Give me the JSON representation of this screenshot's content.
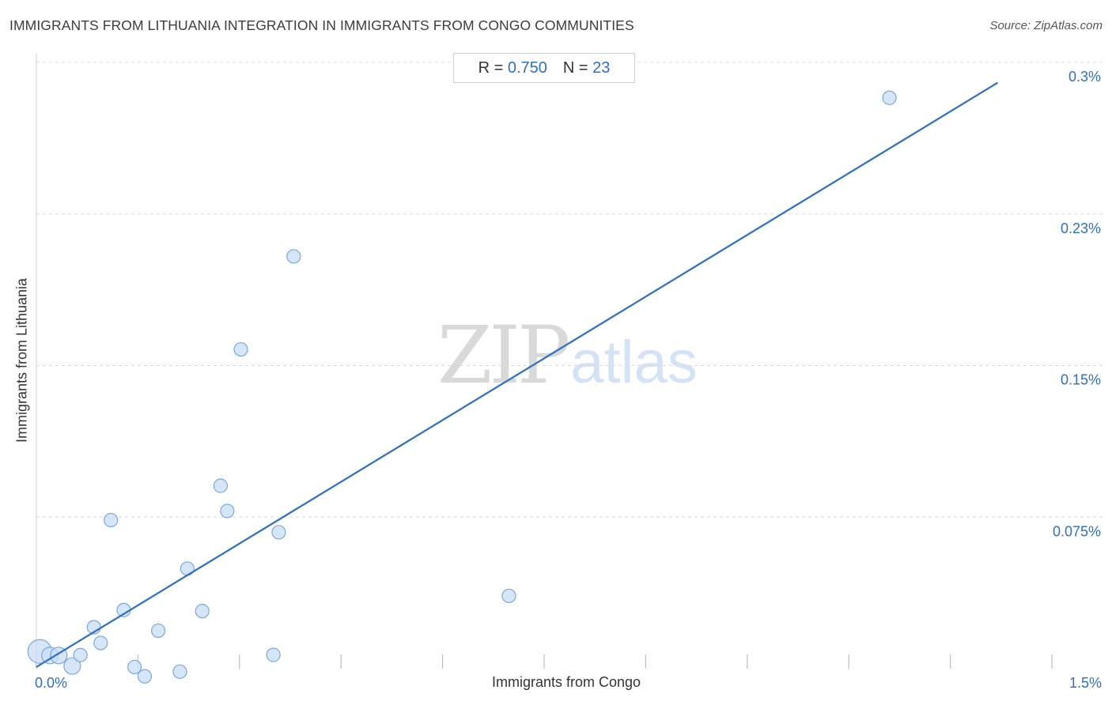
{
  "title": "IMMIGRANTS FROM LITHUANIA INTEGRATION IN IMMIGRANTS FROM CONGO COMMUNITIES",
  "source": "Source: ZipAtlas.com",
  "stats": {
    "r_label": "R = ",
    "r_value": "0.750",
    "n_label": "N = ",
    "n_value": "23"
  },
  "watermark": {
    "zip": "ZIP",
    "atlas": "atlas"
  },
  "colors": {
    "point_fill": "#c9ddf4",
    "point_stroke": "#7aa8de",
    "trend_line": "#2f6fc6",
    "tick_label": "#2f6fc6",
    "grid": "#dcdcdc"
  },
  "chart_data": {
    "type": "scatter",
    "title": "IMMIGRANTS FROM LITHUANIA INTEGRATION IN IMMIGRANTS FROM CONGO COMMUNITIES",
    "xlabel": "Immigrants from Congo",
    "ylabel": "Immigrants from Lithuania",
    "xlim": [
      0,
      1.5
    ],
    "ylim": [
      0,
      0.3
    ],
    "x_unit": "%",
    "y_unit": "%",
    "x_ticks": [
      {
        "value": 0,
        "label": "0.0%"
      },
      {
        "value": 1.5,
        "label": "1.5%"
      }
    ],
    "y_ticks": [
      {
        "value": 0.075,
        "label": "0.075%"
      },
      {
        "value": 0.15,
        "label": "0.15%"
      },
      {
        "value": 0.225,
        "label": "0.23%"
      },
      {
        "value": 0.3,
        "label": "0.3%"
      }
    ],
    "grid": true,
    "points": [
      {
        "x": 0.005,
        "y": 0.0085,
        "size": "large"
      },
      {
        "x": 0.02,
        "y": 0.0065,
        "size": "medium"
      },
      {
        "x": 0.033,
        "y": 0.0065,
        "size": "medium"
      },
      {
        "x": 0.053,
        "y": 0.0013,
        "size": "medium"
      },
      {
        "x": 0.065,
        "y": 0.0067,
        "size": "small"
      },
      {
        "x": 0.085,
        "y": 0.0205,
        "size": "small"
      },
      {
        "x": 0.095,
        "y": 0.0127,
        "size": "small"
      },
      {
        "x": 0.11,
        "y": 0.0735,
        "size": "small"
      },
      {
        "x": 0.129,
        "y": 0.029,
        "size": "small"
      },
      {
        "x": 0.145,
        "y": 0.0008,
        "size": "small"
      },
      {
        "x": 0.16,
        "y": -0.0038,
        "size": "small"
      },
      {
        "x": 0.18,
        "y": 0.0188,
        "size": "small"
      },
      {
        "x": 0.212,
        "y": -0.0015,
        "size": "small"
      },
      {
        "x": 0.223,
        "y": 0.0495,
        "size": "small"
      },
      {
        "x": 0.245,
        "y": 0.0285,
        "size": "small"
      },
      {
        "x": 0.272,
        "y": 0.0905,
        "size": "small"
      },
      {
        "x": 0.282,
        "y": 0.078,
        "size": "small"
      },
      {
        "x": 0.302,
        "y": 0.158,
        "size": "small"
      },
      {
        "x": 0.35,
        "y": 0.0068,
        "size": "small"
      },
      {
        "x": 0.358,
        "y": 0.0675,
        "size": "small"
      },
      {
        "x": 0.38,
        "y": 0.204,
        "size": "small"
      },
      {
        "x": 0.698,
        "y": 0.036,
        "size": "small"
      },
      {
        "x": 1.26,
        "y": 0.2825,
        "size": "small"
      }
    ],
    "trend_line": {
      "x": [
        0,
        1.42
      ],
      "y": [
        0.0008,
        0.29
      ]
    }
  }
}
